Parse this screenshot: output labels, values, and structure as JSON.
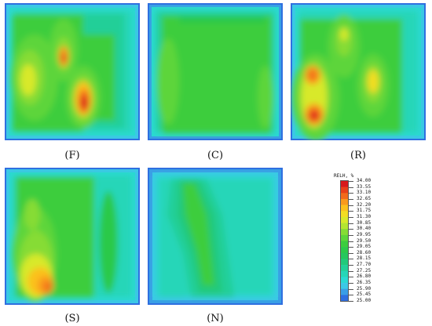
{
  "panels": [
    {
      "label": "(F)"
    },
    {
      "label": "(C)"
    },
    {
      "label": "(R)"
    },
    {
      "label": "(S)"
    },
    {
      "label": "(N)"
    }
  ],
  "legend": {
    "title": "RELH, %",
    "values": [
      "34.00",
      "33.55",
      "33.10",
      "32.65",
      "32.20",
      "31.75",
      "31.30",
      "30.85",
      "30.40",
      "29.95",
      "29.50",
      "29.05",
      "28.60",
      "28.15",
      "27.70",
      "27.25",
      "26.80",
      "26.35",
      "25.90",
      "25.45",
      "25.00"
    ],
    "colors": [
      "#d7191c",
      "#e8401a",
      "#f26a1c",
      "#f99a1e",
      "#fbc11e",
      "#f3dd23",
      "#d8e92a",
      "#b4e531",
      "#86dc36",
      "#5dd53b",
      "#3ccd3e",
      "#2cc94a",
      "#25c75d",
      "#22c97a",
      "#23cf98",
      "#26d6b8",
      "#2bd9d3",
      "#3cc8e6",
      "#3a9ee6",
      "#2f6fe0",
      "#1f38c9"
    ]
  }
}
